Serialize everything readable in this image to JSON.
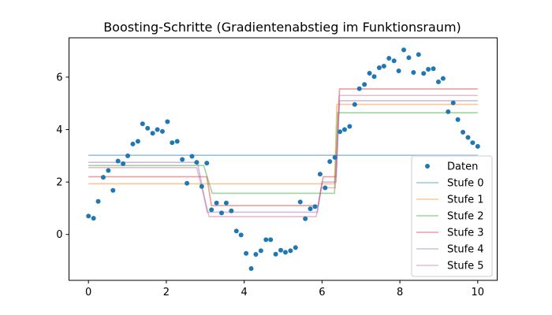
{
  "chart_data": {
    "type": "scatter",
    "title": "Boosting-Schritte (Gradientenabstieg im Funktionsraum)",
    "xlabel": "",
    "ylabel": "",
    "xlim": [
      -0.5,
      10.5
    ],
    "ylim": [
      -1.75,
      7.5
    ],
    "xticks": [
      0,
      2,
      4,
      6,
      8,
      10
    ],
    "yticks": [
      0,
      2,
      4,
      6
    ],
    "legend_position": "lower-right",
    "grid": false,
    "scatter_series": {
      "name": "Daten",
      "color": "#1f77b4",
      "points": [
        [
          0.0,
          0.7
        ],
        [
          0.13,
          0.62
        ],
        [
          0.25,
          1.26
        ],
        [
          0.38,
          2.18
        ],
        [
          0.51,
          2.44
        ],
        [
          0.63,
          1.68
        ],
        [
          0.76,
          2.8
        ],
        [
          0.89,
          2.7
        ],
        [
          1.01,
          3.0
        ],
        [
          1.14,
          3.45
        ],
        [
          1.27,
          3.55
        ],
        [
          1.39,
          4.22
        ],
        [
          1.52,
          4.05
        ],
        [
          1.65,
          3.86
        ],
        [
          1.77,
          4.0
        ],
        [
          1.9,
          3.93
        ],
        [
          2.03,
          4.3
        ],
        [
          2.15,
          3.5
        ],
        [
          2.28,
          3.55
        ],
        [
          2.41,
          2.86
        ],
        [
          2.53,
          1.95
        ],
        [
          2.66,
          2.98
        ],
        [
          2.78,
          2.75
        ],
        [
          2.91,
          1.83
        ],
        [
          3.04,
          2.72
        ],
        [
          3.16,
          0.94
        ],
        [
          3.29,
          1.2
        ],
        [
          3.42,
          0.82
        ],
        [
          3.54,
          1.2
        ],
        [
          3.67,
          0.9
        ],
        [
          3.8,
          0.13
        ],
        [
          3.92,
          -0.02
        ],
        [
          4.05,
          -0.72
        ],
        [
          4.18,
          -1.3
        ],
        [
          4.3,
          -0.76
        ],
        [
          4.43,
          -0.62
        ],
        [
          4.56,
          -0.2
        ],
        [
          4.68,
          -0.2
        ],
        [
          4.81,
          -0.75
        ],
        [
          4.94,
          -0.6
        ],
        [
          5.06,
          -0.68
        ],
        [
          5.19,
          -0.62
        ],
        [
          5.32,
          -0.5
        ],
        [
          5.44,
          1.24
        ],
        [
          5.57,
          0.6
        ],
        [
          5.7,
          0.98
        ],
        [
          5.82,
          1.06
        ],
        [
          5.95,
          2.3
        ],
        [
          6.08,
          1.78
        ],
        [
          6.2,
          2.78
        ],
        [
          6.33,
          2.94
        ],
        [
          6.46,
          3.92
        ],
        [
          6.58,
          4.0
        ],
        [
          6.71,
          4.12
        ],
        [
          6.84,
          4.96
        ],
        [
          6.96,
          5.56
        ],
        [
          7.09,
          5.72
        ],
        [
          7.22,
          6.15
        ],
        [
          7.34,
          6.02
        ],
        [
          7.47,
          6.36
        ],
        [
          7.59,
          6.42
        ],
        [
          7.72,
          6.72
        ],
        [
          7.85,
          6.62
        ],
        [
          7.97,
          6.24
        ],
        [
          8.1,
          7.04
        ],
        [
          8.23,
          6.74
        ],
        [
          8.35,
          6.18
        ],
        [
          8.48,
          6.86
        ],
        [
          8.61,
          6.14
        ],
        [
          8.73,
          6.3
        ],
        [
          8.86,
          6.32
        ],
        [
          8.99,
          5.82
        ],
        [
          9.11,
          5.95
        ],
        [
          9.24,
          4.68
        ],
        [
          9.37,
          5.02
        ],
        [
          9.49,
          4.38
        ],
        [
          9.62,
          3.9
        ],
        [
          9.75,
          3.7
        ],
        [
          9.87,
          3.5
        ],
        [
          10.0,
          3.36
        ]
      ]
    },
    "series": [
      {
        "name": "Stufe 0",
        "color": "#1f77b4",
        "points": [
          [
            0,
            3.02
          ],
          [
            10,
            3.02
          ]
        ]
      },
      {
        "name": "Stufe 1",
        "color": "#ff7f0e",
        "points": [
          [
            0,
            1.93
          ],
          [
            3.1,
            1.93
          ],
          [
            3.12,
            1.93
          ],
          [
            6.32,
            1.93
          ],
          [
            6.38,
            4.96
          ],
          [
            10,
            4.96
          ]
        ]
      },
      {
        "name": "Stufe 2",
        "color": "#2ca02c",
        "points": [
          [
            0,
            2.63
          ],
          [
            2.96,
            2.63
          ],
          [
            3.18,
            1.57
          ],
          [
            6.32,
            1.57
          ],
          [
            6.4,
            4.64
          ],
          [
            10,
            4.64
          ]
        ]
      },
      {
        "name": "Stufe 3",
        "color": "#d62728",
        "points": [
          [
            0,
            2.2
          ],
          [
            3.04,
            2.2
          ],
          [
            3.16,
            1.1
          ],
          [
            5.9,
            1.1
          ],
          [
            6.03,
            2.2
          ],
          [
            6.36,
            2.2
          ],
          [
            6.45,
            5.55
          ],
          [
            10,
            5.55
          ]
        ]
      },
      {
        "name": "Stufe 4",
        "color": "#9467bd",
        "points": [
          [
            0,
            2.75
          ],
          [
            2.8,
            2.75
          ],
          [
            3.05,
            0.85
          ],
          [
            5.88,
            0.85
          ],
          [
            6.0,
            2.0
          ],
          [
            6.36,
            2.0
          ],
          [
            6.45,
            5.1
          ],
          [
            10,
            5.1
          ]
        ]
      },
      {
        "name": "Stufe 5",
        "color": "#c56b8a",
        "points": [
          [
            0,
            2.55
          ],
          [
            2.78,
            2.55
          ],
          [
            3.1,
            0.68
          ],
          [
            5.85,
            0.68
          ],
          [
            5.98,
            1.78
          ],
          [
            6.34,
            1.78
          ],
          [
            6.44,
            5.3
          ],
          [
            10,
            5.3
          ]
        ]
      }
    ]
  }
}
